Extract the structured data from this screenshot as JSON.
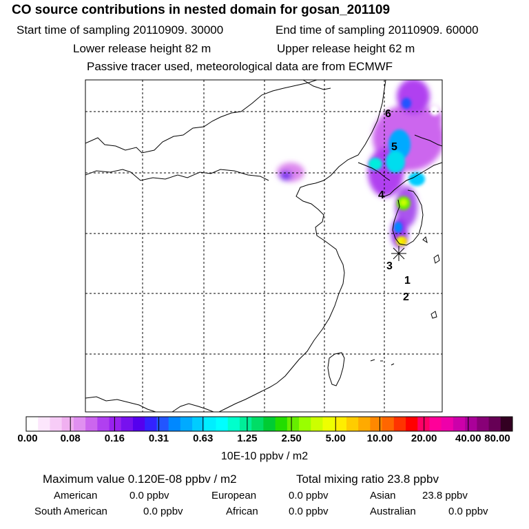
{
  "header": {
    "title": "CO  source contributions in nested domain for gosan_201109",
    "start_time": "Start time of sampling 20110909. 30000",
    "end_time": "End time of sampling 20110909. 60000",
    "lower_release": "Lower release height   82 m",
    "upper_release": "Upper release height   62 m",
    "tracer_note": "Passive tracer used, meteorological data are from ECMWF"
  },
  "map": {
    "trajectory_labels": [
      "6",
      "5",
      "4",
      "3",
      "1",
      "2"
    ],
    "receptor_marker": "star"
  },
  "colorbar": {
    "tick_labels": [
      "0.00",
      "0.08",
      "0.16",
      "0.31",
      "0.63",
      "1.25",
      "2.50",
      "5.00",
      "10.00",
      "20.00",
      "40.00",
      "80.00"
    ],
    "units": "10E-10 ppbv / m2",
    "colors": [
      "#ffffff",
      "#fce6fc",
      "#f7ccf7",
      "#f0b0f0",
      "#e090f0",
      "#cc66ee",
      "#b040f0",
      "#9922ee",
      "#7711ee",
      "#5500ee",
      "#3322ff",
      "#2255ff",
      "#0088ff",
      "#00aaff",
      "#00ccff",
      "#00eeff",
      "#00ffff",
      "#00ffcc",
      "#00ee99",
      "#00dd66",
      "#00cc33",
      "#22dd00",
      "#66ee00",
      "#99ff00",
      "#ccff00",
      "#eeff00",
      "#ffee00",
      "#ffcc00",
      "#ffaa00",
      "#ff8800",
      "#ff6600",
      "#ff3300",
      "#ff0000",
      "#ff0066",
      "#ff0099",
      "#ee00aa",
      "#cc00aa",
      "#aa0099",
      "#880077",
      "#660055",
      "#330022"
    ]
  },
  "stats": {
    "max_value": "Maximum value  0.120E-08 ppbv / m2",
    "total_mixing": "Total mixing ratio       23.8 ppbv"
  },
  "regions": {
    "american_label": "American",
    "american_value": "0.0 ppbv",
    "european_label": "European",
    "european_value": "0.0 ppbv",
    "asian_label": "Asian",
    "asian_value": "23.8 ppbv",
    "south_american_label": "South American",
    "south_american_value": "0.0 ppbv",
    "african_label": "African",
    "african_value": "0.0 ppbv",
    "australian_label": "Australian",
    "australian_value": "0.0 ppbv"
  }
}
